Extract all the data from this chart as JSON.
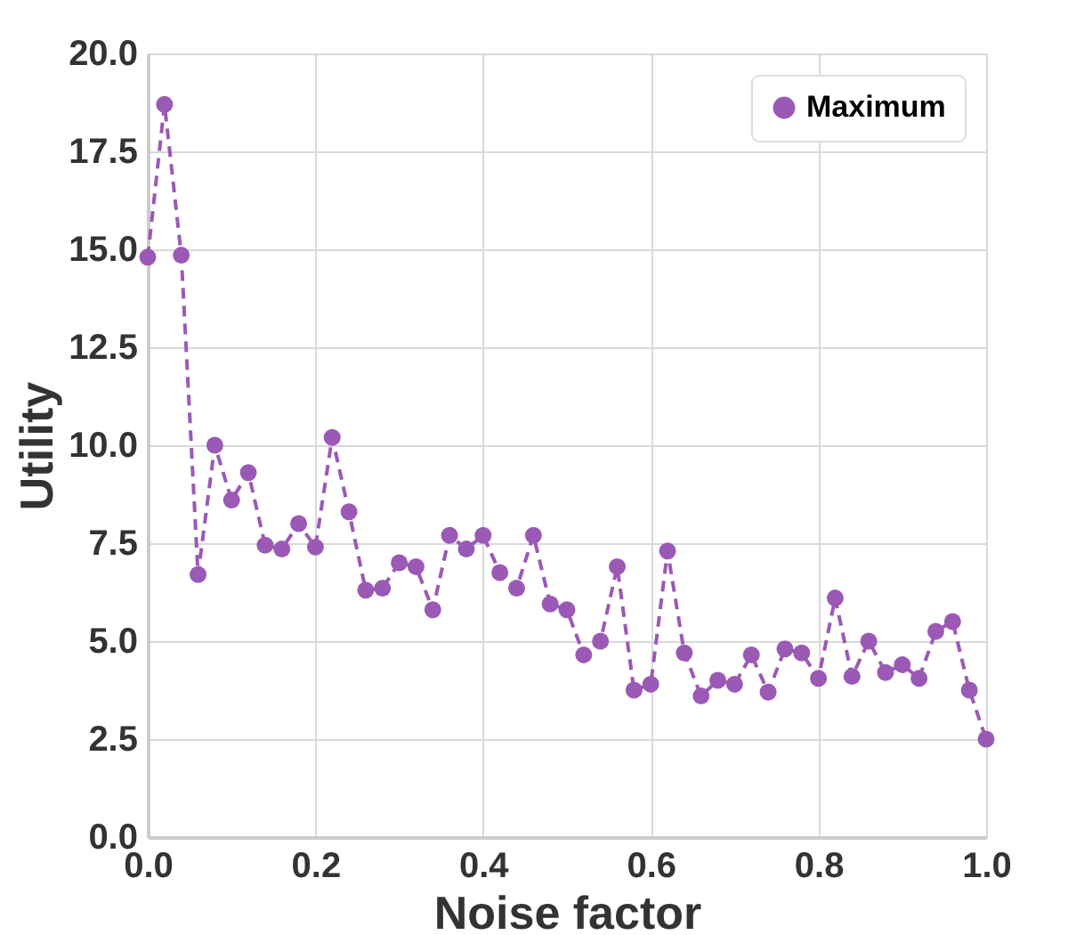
{
  "chart_data": {
    "type": "line",
    "xlabel": "Noise factor",
    "ylabel": "Utility",
    "x": [
      0,
      0.02,
      0.04,
      0.06,
      0.08,
      0.1,
      0.12,
      0.14,
      0.16,
      0.18,
      0.2,
      0.22,
      0.24,
      0.26,
      0.28,
      0.3,
      0.32,
      0.34,
      0.36,
      0.38,
      0.4,
      0.42,
      0.44,
      0.46,
      0.48,
      0.5,
      0.52,
      0.54,
      0.56,
      0.58,
      0.6,
      0.62,
      0.64,
      0.66,
      0.68,
      0.7,
      0.72,
      0.74,
      0.76,
      0.78,
      0.8,
      0.82,
      0.84,
      0.86,
      0.88,
      0.9,
      0.92,
      0.94,
      0.96,
      0.98,
      1.0
    ],
    "series": [
      {
        "name": "Maximum",
        "color": "#9b59b6",
        "values": [
          14.8,
          18.7,
          14.85,
          6.7,
          10.0,
          8.6,
          9.3,
          7.45,
          7.35,
          8.0,
          7.4,
          10.2,
          8.3,
          6.3,
          6.35,
          7.0,
          6.9,
          5.8,
          7.7,
          7.35,
          7.7,
          6.75,
          6.35,
          7.7,
          5.95,
          5.8,
          4.65,
          5.0,
          6.9,
          3.75,
          3.9,
          7.3,
          4.7,
          3.6,
          4.0,
          3.9,
          4.65,
          3.7,
          4.8,
          4.7,
          4.05,
          6.1,
          4.1,
          5.0,
          4.2,
          4.4,
          4.05,
          5.25,
          5.5,
          3.75,
          2.5
        ]
      }
    ],
    "xlim": [
      0,
      1.0
    ],
    "xticks": [
      {
        "value": 0,
        "label": "0.0"
      },
      {
        "value": 0.2,
        "label": "0.2"
      },
      {
        "value": 0.4,
        "label": "0.4"
      },
      {
        "value": 0.6,
        "label": "0.6"
      },
      {
        "value": 0.8,
        "label": "0.8"
      },
      {
        "value": 1.0,
        "label": "1.0"
      }
    ],
    "ylim": [
      0,
      20
    ],
    "yticks": [
      {
        "value": 0,
        "label": "0.0"
      },
      {
        "value": 2.5,
        "label": "2.5"
      },
      {
        "value": 5,
        "label": "5.0"
      },
      {
        "value": 7.5,
        "label": "7.5"
      },
      {
        "value": 10,
        "label": "10.0"
      },
      {
        "value": 12.5,
        "label": "12.5"
      },
      {
        "value": 15,
        "label": "15.0"
      },
      {
        "value": 17.5,
        "label": "17.5"
      },
      {
        "value": 20,
        "label": "20.0"
      }
    ],
    "grid": true,
    "legend": "top right",
    "marker": "circle",
    "line_style": "dashed"
  }
}
